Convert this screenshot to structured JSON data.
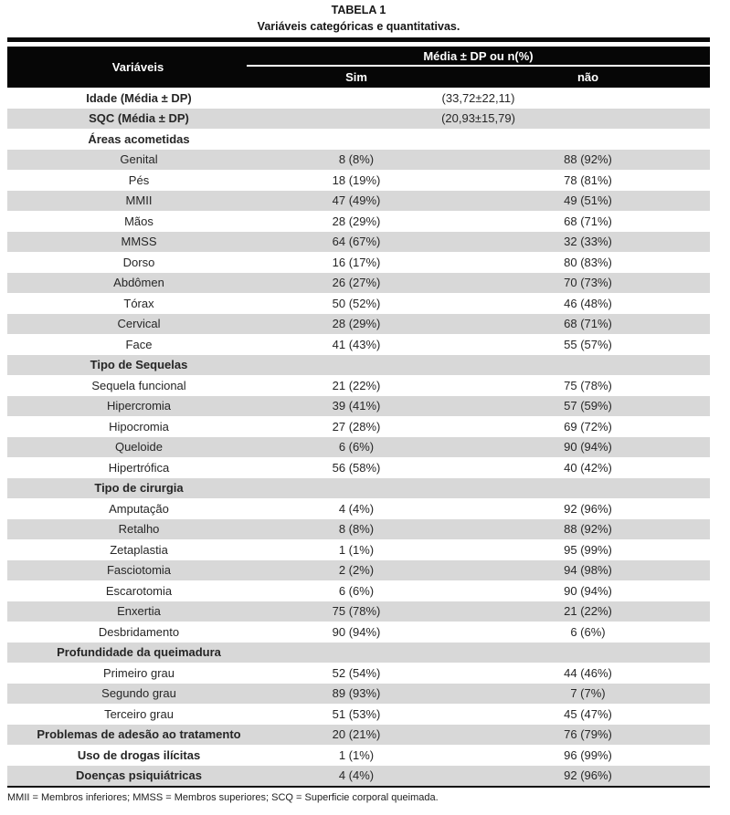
{
  "title": "TABELA 1",
  "subtitle": "Variáveis categóricas e quantitativas.",
  "header": {
    "variaveis": "Variáveis",
    "span": "Média ± DP ou n(%)",
    "sim": "Sim",
    "nao": "não"
  },
  "rows": [
    {
      "type": "merged",
      "bold": true,
      "label": "Idade (Média ± DP)",
      "value": "(33,72±22,11)"
    },
    {
      "type": "merged",
      "bold": true,
      "label": "SQC (Média ± DP)",
      "value": "(20,93±15,79)"
    },
    {
      "type": "section",
      "bold": true,
      "label": "Áreas acometidas"
    },
    {
      "type": "data",
      "bold": false,
      "label": "Genital",
      "sim": "8 (8%)",
      "nao": "88 (92%)"
    },
    {
      "type": "data",
      "bold": false,
      "label": "Pés",
      "sim": "18 (19%)",
      "nao": "78 (81%)"
    },
    {
      "type": "data",
      "bold": false,
      "label": "MMII",
      "sim": "47 (49%)",
      "nao": "49 (51%)"
    },
    {
      "type": "data",
      "bold": false,
      "label": "Mãos",
      "sim": "28 (29%)",
      "nao": "68 (71%)"
    },
    {
      "type": "data",
      "bold": false,
      "label": "MMSS",
      "sim": "64 (67%)",
      "nao": "32 (33%)"
    },
    {
      "type": "data",
      "bold": false,
      "label": "Dorso",
      "sim": "16 (17%)",
      "nao": "80 (83%)"
    },
    {
      "type": "data",
      "bold": false,
      "label": "Abdômen",
      "sim": "26 (27%)",
      "nao": "70 (73%)"
    },
    {
      "type": "data",
      "bold": false,
      "label": "Tórax",
      "sim": "50 (52%)",
      "nao": "46 (48%)"
    },
    {
      "type": "data",
      "bold": false,
      "label": "Cervical",
      "sim": "28 (29%)",
      "nao": "68 (71%)"
    },
    {
      "type": "data",
      "bold": false,
      "label": "Face",
      "sim": "41 (43%)",
      "nao": "55 (57%)"
    },
    {
      "type": "section",
      "bold": true,
      "label": "Tipo de Sequelas"
    },
    {
      "type": "data",
      "bold": false,
      "label": "Sequela funcional",
      "sim": "21 (22%)",
      "nao": "75 (78%)"
    },
    {
      "type": "data",
      "bold": false,
      "label": "Hipercromia",
      "sim": "39 (41%)",
      "nao": "57 (59%)"
    },
    {
      "type": "data",
      "bold": false,
      "label": "Hipocromia",
      "sim": "27 (28%)",
      "nao": "69 (72%)"
    },
    {
      "type": "data",
      "bold": false,
      "label": "Queloide",
      "sim": "6 (6%)",
      "nao": "90 (94%)"
    },
    {
      "type": "data",
      "bold": false,
      "label": "Hipertrófica",
      "sim": "56 (58%)",
      "nao": "40 (42%)"
    },
    {
      "type": "section",
      "bold": true,
      "label": "Tipo de cirurgia"
    },
    {
      "type": "data",
      "bold": false,
      "label": "Amputação",
      "sim": "4 (4%)",
      "nao": "92 (96%)"
    },
    {
      "type": "data",
      "bold": false,
      "label": "Retalho",
      "sim": "8 (8%)",
      "nao": "88 (92%)"
    },
    {
      "type": "data",
      "bold": false,
      "label": "Zetaplastia",
      "sim": "1 (1%)",
      "nao": "95 (99%)"
    },
    {
      "type": "data",
      "bold": false,
      "label": "Fasciotomia",
      "sim": "2 (2%)",
      "nao": "94 (98%)"
    },
    {
      "type": "data",
      "bold": false,
      "label": "Escarotomia",
      "sim": "6 (6%)",
      "nao": "90 (94%)"
    },
    {
      "type": "data",
      "bold": false,
      "label": "Enxertia",
      "sim": "75 (78%)",
      "nao": "21 (22%)"
    },
    {
      "type": "data",
      "bold": false,
      "label": "Desbridamento",
      "sim": "90 (94%)",
      "nao": "6 (6%)"
    },
    {
      "type": "section",
      "bold": true,
      "label": "Profundidade da queimadura"
    },
    {
      "type": "data",
      "bold": false,
      "label": "Primeiro grau",
      "sim": "52 (54%)",
      "nao": "44 (46%)"
    },
    {
      "type": "data",
      "bold": false,
      "label": "Segundo grau",
      "sim": "89 (93%)",
      "nao": "7 (7%)"
    },
    {
      "type": "data",
      "bold": false,
      "label": "Terceiro grau",
      "sim": "51 (53%)",
      "nao": "45 (47%)"
    },
    {
      "type": "data",
      "bold": true,
      "label": "Problemas de adesão ao tratamento",
      "sim": "20 (21%)",
      "nao": "76 (79%)"
    },
    {
      "type": "data",
      "bold": true,
      "label": "Uso de drogas ilícitas",
      "sim": "1 (1%)",
      "nao": "96 (99%)"
    },
    {
      "type": "data",
      "bold": true,
      "label": "Doenças psiquiátricas",
      "sim": "4 (4%)",
      "nao": "92 (96%)"
    }
  ],
  "footnote": "MMII = Membros inferiores; MMSS = Membros superiores; SCQ = Superficie corporal queimada.",
  "colors": {
    "header_bg": "#060606",
    "row_shade": "#d8d8d8",
    "text": "#262626"
  }
}
